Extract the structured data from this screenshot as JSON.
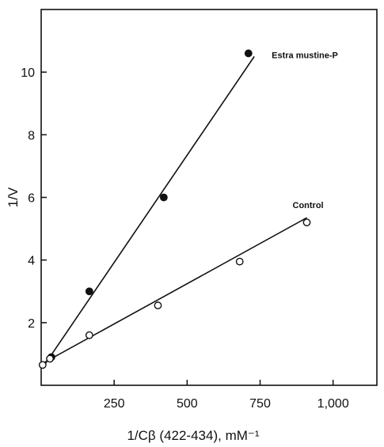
{
  "chart_data": {
    "type": "scatter",
    "title": "",
    "xlabel": "1/Cβ (422-434), mM⁻¹",
    "ylabel": "1/V",
    "xlim": [
      0,
      1150
    ],
    "ylim": [
      0,
      12
    ],
    "xticks": [
      250,
      500,
      750,
      1000
    ],
    "xtick_labels": [
      "250",
      "500",
      "750",
      "1,000"
    ],
    "yticks": [
      2,
      4,
      6,
      8,
      10
    ],
    "ytick_labels": [
      "2",
      "4",
      "6",
      "8",
      "10"
    ],
    "grid": false,
    "series": [
      {
        "name": "Estra mustine-P",
        "marker": "filled-circle",
        "color": "#111111",
        "x": [
          35,
          165,
          420,
          710
        ],
        "y": [
          0.9,
          3.0,
          6.0,
          10.6
        ],
        "fit_line": {
          "x": [
            15,
            730
          ],
          "y": [
            0.7,
            10.5
          ]
        }
      },
      {
        "name": "Control",
        "marker": "open-circle",
        "color": "#111111",
        "x": [
          5,
          30,
          165,
          400,
          680,
          910
        ],
        "y": [
          0.65,
          0.85,
          1.6,
          2.55,
          3.95,
          5.2
        ],
        "fit_line": {
          "x": [
            5,
            910
          ],
          "y": [
            0.7,
            5.35
          ]
        }
      }
    ]
  }
}
